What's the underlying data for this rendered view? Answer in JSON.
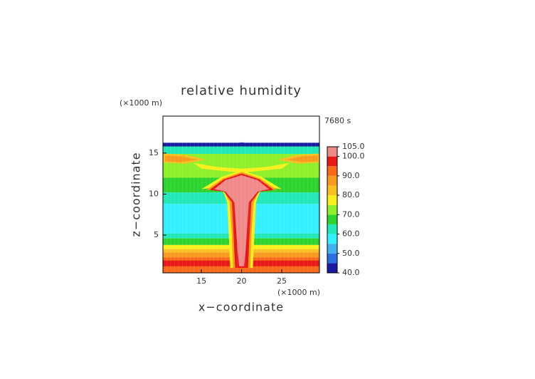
{
  "chart_data": {
    "type": "contour",
    "title": "relative humidity",
    "x_label": "x−coordinate",
    "y_label": "z−coordinate",
    "x_unit": "(×1000 m)",
    "y_unit": "(×1000 m)",
    "time_label": "7680 s",
    "xlim": [
      10.2,
      29.7
    ],
    "xticks": [
      15,
      20,
      25
    ],
    "ylim": [
      0.4,
      19.5
    ],
    "yticks": [
      5,
      10,
      15
    ],
    "colorbar": {
      "levels": [
        40,
        45,
        50,
        55,
        60,
        65,
        70,
        75,
        80,
        85,
        90,
        95,
        100,
        105
      ],
      "colors": [
        "#1a1aa0",
        "#2a6fe0",
        "#3fb0f0",
        "#33f0ff",
        "#22e8b8",
        "#2ed42e",
        "#8ef02a",
        "#f8f018",
        "#f8c020",
        "#f89a1e",
        "#f86a1a",
        "#e81818",
        "#f08a8a"
      ],
      "ticks": [
        {
          "value": 40,
          "label": "40.0"
        },
        {
          "value": 50,
          "label": "50.0"
        },
        {
          "value": 60,
          "label": "60.0"
        },
        {
          "value": 70,
          "label": "70.0"
        },
        {
          "value": 80,
          "label": "80.0"
        },
        {
          "value": 90,
          "label": "90.0"
        },
        {
          "value": 100,
          "label": "100.0"
        },
        {
          "value": 105,
          "label": "105.0"
        }
      ]
    }
  }
}
